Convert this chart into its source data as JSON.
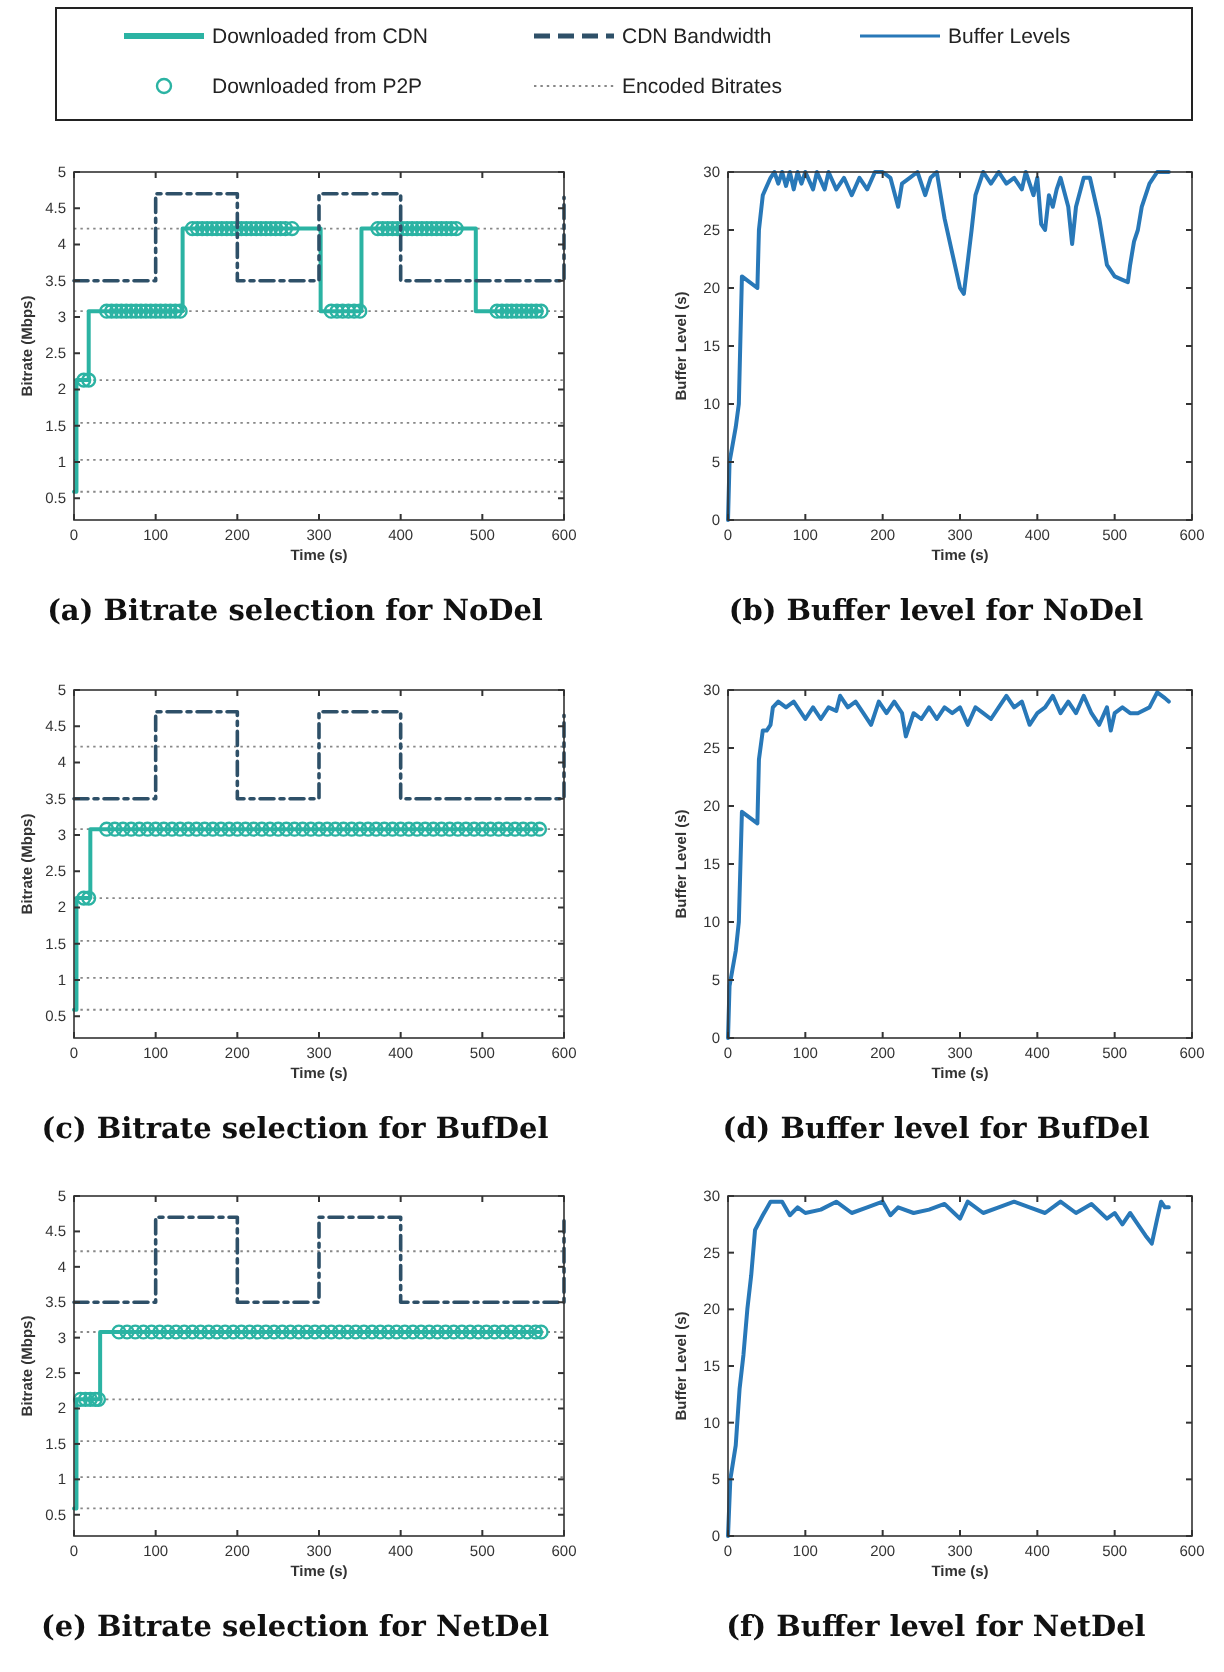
{
  "chart_data": [
    {
      "type": "line",
      "title": "(a) Bitrate selection for NoDel",
      "xlabel": "Time (s)",
      "ylabel": "Bitrate (Mbps)",
      "xlim": [
        0,
        600
      ],
      "xticks": [
        0,
        100,
        200,
        300,
        400,
        500,
        600
      ],
      "ylim": [
        0.2,
        5
      ],
      "yticks": [
        0.5,
        1,
        1.5,
        2,
        2.5,
        3,
        3.5,
        4,
        4.5,
        5
      ],
      "legend": "top",
      "series": [
        {
          "name": "Downloaded from CDN",
          "type": "line",
          "color": "#2bb3a3",
          "line_style": "solid",
          "x": [
            0,
            3,
            3,
            18,
            18,
            133,
            133,
            302,
            302,
            352,
            352,
            492,
            492,
            572
          ],
          "values": [
            0.59,
            0.59,
            2.13,
            2.13,
            3.08,
            3.08,
            4.22,
            4.22,
            3.08,
            3.08,
            4.22,
            4.22,
            3.08,
            3.08
          ]
        },
        {
          "name": "Downloaded from P2P",
          "type": "scatter",
          "marker": "circle",
          "color": "#2bb3a3",
          "x": [
            12,
            18,
            40,
            46,
            52,
            58,
            64,
            70,
            76,
            82,
            88,
            94,
            100,
            106,
            112,
            118,
            124,
            130,
            145,
            151,
            157,
            163,
            169,
            175,
            181,
            187,
            193,
            199,
            205,
            211,
            217,
            223,
            229,
            235,
            241,
            247,
            253,
            259,
            267,
            315,
            322,
            329,
            336,
            343,
            350,
            372,
            378,
            384,
            390,
            396,
            402,
            408,
            414,
            420,
            426,
            432,
            438,
            444,
            450,
            456,
            462,
            468,
            518,
            524,
            530,
            536,
            542,
            548,
            554,
            560,
            566,
            572
          ],
          "values": [
            2.13,
            2.13,
            3.08,
            3.08,
            3.08,
            3.08,
            3.08,
            3.08,
            3.08,
            3.08,
            3.08,
            3.08,
            3.08,
            3.08,
            3.08,
            3.08,
            3.08,
            3.08,
            4.22,
            4.22,
            4.22,
            4.22,
            4.22,
            4.22,
            4.22,
            4.22,
            4.22,
            4.22,
            4.22,
            4.22,
            4.22,
            4.22,
            4.22,
            4.22,
            4.22,
            4.22,
            4.22,
            4.22,
            4.22,
            3.08,
            3.08,
            3.08,
            3.08,
            3.08,
            3.08,
            4.22,
            4.22,
            4.22,
            4.22,
            4.22,
            4.22,
            4.22,
            4.22,
            4.22,
            4.22,
            4.22,
            4.22,
            4.22,
            4.22,
            4.22,
            4.22,
            4.22,
            3.08,
            3.08,
            3.08,
            3.08,
            3.08,
            3.08,
            3.08,
            3.08,
            3.08,
            3.08
          ]
        },
        {
          "name": "CDN Bandwidth",
          "type": "line",
          "color": "#2e5068",
          "line_style": "dashed",
          "x": [
            0,
            100,
            100,
            200,
            200,
            300,
            300,
            400,
            400,
            600,
            600
          ],
          "values": [
            3.5,
            3.5,
            4.7,
            4.7,
            3.5,
            3.5,
            4.7,
            4.7,
            3.5,
            3.5,
            4.65
          ]
        }
      ],
      "ref_lines": [
        {
          "axis": "y",
          "value": 0.59,
          "label": "Encoded Bitrates",
          "color": "#888888",
          "line_style": "dotted"
        },
        {
          "axis": "y",
          "value": 1.03,
          "color": "#888888",
          "line_style": "dotted"
        },
        {
          "axis": "y",
          "value": 1.54,
          "color": "#888888",
          "line_style": "dotted"
        },
        {
          "axis": "y",
          "value": 2.13,
          "color": "#888888",
          "line_style": "dotted"
        },
        {
          "axis": "y",
          "value": 3.08,
          "color": "#888888",
          "line_style": "dotted"
        },
        {
          "axis": "y",
          "value": 4.22,
          "color": "#888888",
          "line_style": "dotted"
        }
      ]
    },
    {
      "type": "line",
      "title": "(b) Buffer level for NoDel",
      "xlabel": "Time (s)",
      "ylabel": "Buffer Level (s)",
      "xlim": [
        0,
        600
      ],
      "xticks": [
        0,
        100,
        200,
        300,
        400,
        500,
        600
      ],
      "ylim": [
        0,
        30
      ],
      "yticks": [
        0,
        5,
        10,
        15,
        20,
        25,
        30
      ],
      "legend": "top",
      "series": [
        {
          "name": "Buffer Levels",
          "type": "line",
          "color": "#2878b8",
          "line_style": "solid",
          "x": [
            0,
            2,
            10,
            14,
            18,
            38,
            40,
            45,
            55,
            60,
            65,
            70,
            75,
            80,
            85,
            90,
            95,
            100,
            110,
            115,
            125,
            130,
            140,
            150,
            160,
            170,
            180,
            190,
            200,
            210,
            220,
            225,
            235,
            245,
            255,
            262,
            270,
            280,
            290,
            300,
            305,
            315,
            320,
            330,
            340,
            350,
            360,
            370,
            380,
            385,
            395,
            400,
            405,
            410,
            415,
            420,
            425,
            430,
            440,
            445,
            450,
            460,
            468,
            480,
            490,
            500,
            510,
            517,
            520,
            525,
            530,
            535,
            545,
            555,
            570
          ],
          "values": [
            0,
            5,
            8,
            10,
            21,
            20,
            25,
            28,
            29.5,
            30,
            29,
            30,
            28.8,
            30,
            28.5,
            30,
            29,
            30,
            28.5,
            30,
            28.5,
            30,
            28.5,
            29.5,
            28,
            29.5,
            28.5,
            30,
            30,
            29.5,
            27,
            29,
            29.5,
            30,
            28,
            29.5,
            30,
            26,
            23,
            20,
            19.5,
            25,
            28,
            30,
            29,
            30,
            29,
            29.5,
            28.5,
            30,
            28,
            29.5,
            25.5,
            25,
            28,
            27,
            28.5,
            29.5,
            27,
            23.8,
            27,
            29.5,
            29.5,
            26,
            22,
            21,
            20.7,
            20.5,
            22,
            24,
            25,
            27,
            29,
            30,
            30
          ]
        }
      ]
    },
    {
      "type": "line",
      "title": "(c) Bitrate selection for BufDel",
      "xlabel": "Time (s)",
      "ylabel": "Bitrate (Mbps)",
      "xlim": [
        0,
        600
      ],
      "xticks": [
        0,
        100,
        200,
        300,
        400,
        500,
        600
      ],
      "ylim": [
        0.2,
        5
      ],
      "yticks": [
        0.5,
        1,
        1.5,
        2,
        2.5,
        3,
        3.5,
        4,
        4.5,
        5
      ],
      "series": [
        {
          "type": "line",
          "color": "#2bb3a3",
          "line_style": "solid",
          "x": [
            0,
            3,
            3,
            20,
            20,
            572
          ],
          "values": [
            0.59,
            0.59,
            2.13,
            2.13,
            3.08,
            3.08
          ]
        },
        {
          "type": "scatter",
          "marker": "circle",
          "color": "#2bb3a3",
          "x": [
            12,
            18,
            40,
            50,
            60,
            70,
            80,
            90,
            100,
            110,
            120,
            130,
            140,
            150,
            160,
            170,
            180,
            190,
            200,
            210,
            220,
            230,
            240,
            250,
            260,
            270,
            280,
            290,
            300,
            310,
            320,
            330,
            340,
            350,
            360,
            370,
            380,
            390,
            400,
            410,
            420,
            430,
            440,
            450,
            460,
            470,
            480,
            490,
            500,
            510,
            520,
            530,
            540,
            550,
            560,
            570
          ],
          "values": [
            2.13,
            2.13,
            3.08,
            3.08,
            3.08,
            3.08,
            3.08,
            3.08,
            3.08,
            3.08,
            3.08,
            3.08,
            3.08,
            3.08,
            3.08,
            3.08,
            3.08,
            3.08,
            3.08,
            3.08,
            3.08,
            3.08,
            3.08,
            3.08,
            3.08,
            3.08,
            3.08,
            3.08,
            3.08,
            3.08,
            3.08,
            3.08,
            3.08,
            3.08,
            3.08,
            3.08,
            3.08,
            3.08,
            3.08,
            3.08,
            3.08,
            3.08,
            3.08,
            3.08,
            3.08,
            3.08,
            3.08,
            3.08,
            3.08,
            3.08,
            3.08,
            3.08,
            3.08,
            3.08,
            3.08,
            3.08
          ]
        },
        {
          "type": "line",
          "color": "#2e5068",
          "line_style": "dashed",
          "x": [
            0,
            100,
            100,
            200,
            200,
            300,
            300,
            400,
            400,
            600,
            600
          ],
          "values": [
            3.5,
            3.5,
            4.7,
            4.7,
            3.5,
            3.5,
            4.7,
            4.7,
            3.5,
            3.5,
            4.65
          ]
        }
      ],
      "ref_lines": [
        {
          "axis": "y",
          "value": 0.59,
          "color": "#888888",
          "line_style": "dotted"
        },
        {
          "axis": "y",
          "value": 1.03,
          "color": "#888888",
          "line_style": "dotted"
        },
        {
          "axis": "y",
          "value": 1.54,
          "color": "#888888",
          "line_style": "dotted"
        },
        {
          "axis": "y",
          "value": 2.13,
          "color": "#888888",
          "line_style": "dotted"
        },
        {
          "axis": "y",
          "value": 3.08,
          "color": "#888888",
          "line_style": "dotted"
        },
        {
          "axis": "y",
          "value": 4.22,
          "color": "#888888",
          "line_style": "dotted"
        }
      ]
    },
    {
      "type": "line",
      "title": "(d) Buffer level for BufDel",
      "xlabel": "Time (s)",
      "ylabel": "Buffer Level (s)",
      "xlim": [
        0,
        600
      ],
      "xticks": [
        0,
        100,
        200,
        300,
        400,
        500,
        600
      ],
      "ylim": [
        0,
        30
      ],
      "yticks": [
        0,
        5,
        10,
        15,
        20,
        25,
        30
      ],
      "series": [
        {
          "type": "line",
          "color": "#2878b8",
          "line_style": "solid",
          "x": [
            0,
            2,
            10,
            14,
            18,
            38,
            40,
            45,
            50,
            55,
            58,
            65,
            75,
            85,
            100,
            110,
            120,
            130,
            140,
            145,
            155,
            165,
            175,
            185,
            195,
            205,
            215,
            225,
            230,
            240,
            250,
            260,
            270,
            280,
            290,
            300,
            310,
            320,
            330,
            340,
            350,
            360,
            370,
            380,
            390,
            400,
            410,
            420,
            430,
            440,
            450,
            460,
            470,
            480,
            490,
            495,
            500,
            510,
            520,
            530,
            545,
            555,
            565,
            570
          ],
          "values": [
            0,
            4.5,
            7.5,
            10,
            19.5,
            18.5,
            24,
            26.5,
            26.5,
            27,
            28.5,
            29,
            28.5,
            29,
            27.5,
            28.5,
            27.5,
            28.5,
            28.2,
            29.5,
            28.5,
            29,
            28,
            27,
            29,
            28,
            29,
            28,
            26,
            28,
            27.5,
            28.5,
            27.5,
            28.5,
            28,
            28.5,
            27,
            28.5,
            28,
            27.5,
            28.5,
            29.5,
            28.5,
            29,
            27,
            28,
            28.5,
            29.5,
            28,
            29,
            28,
            29.5,
            28,
            27,
            28.5,
            26.5,
            28,
            28.5,
            28,
            28,
            28.5,
            29.8,
            29.3,
            29
          ]
        }
      ]
    },
    {
      "type": "line",
      "title": "(e) Bitrate selection for NetDel",
      "xlabel": "Time (s)",
      "ylabel": "Bitrate (Mbps)",
      "xlim": [
        0,
        600
      ],
      "xticks": [
        0,
        100,
        200,
        300,
        400,
        500,
        600
      ],
      "ylim": [
        0.2,
        5
      ],
      "yticks": [
        0.5,
        1,
        1.5,
        2,
        2.5,
        3,
        3.5,
        4,
        4.5,
        5
      ],
      "series": [
        {
          "type": "line",
          "color": "#2bb3a3",
          "line_style": "solid",
          "x": [
            0,
            3,
            3,
            32,
            32,
            572
          ],
          "values": [
            0.59,
            0.59,
            2.13,
            2.13,
            3.08,
            3.08
          ]
        },
        {
          "type": "scatter",
          "marker": "circle",
          "color": "#2bb3a3",
          "x": [
            8,
            14,
            20,
            26,
            30,
            55,
            65,
            75,
            85,
            95,
            105,
            115,
            125,
            135,
            145,
            155,
            165,
            175,
            185,
            195,
            205,
            215,
            225,
            235,
            245,
            255,
            265,
            275,
            285,
            295,
            305,
            315,
            325,
            335,
            345,
            355,
            365,
            375,
            385,
            395,
            405,
            415,
            425,
            435,
            445,
            455,
            465,
            475,
            485,
            495,
            505,
            515,
            525,
            535,
            545,
            555,
            565,
            572
          ],
          "values": [
            2.13,
            2.13,
            2.13,
            2.13,
            2.13,
            3.08,
            3.08,
            3.08,
            3.08,
            3.08,
            3.08,
            3.08,
            3.08,
            3.08,
            3.08,
            3.08,
            3.08,
            3.08,
            3.08,
            3.08,
            3.08,
            3.08,
            3.08,
            3.08,
            3.08,
            3.08,
            3.08,
            3.08,
            3.08,
            3.08,
            3.08,
            3.08,
            3.08,
            3.08,
            3.08,
            3.08,
            3.08,
            3.08,
            3.08,
            3.08,
            3.08,
            3.08,
            3.08,
            3.08,
            3.08,
            3.08,
            3.08,
            3.08,
            3.08,
            3.08,
            3.08,
            3.08,
            3.08,
            3.08,
            3.08,
            3.08,
            3.08,
            3.08
          ]
        },
        {
          "type": "line",
          "color": "#2e5068",
          "line_style": "dashed",
          "x": [
            0,
            100,
            100,
            200,
            200,
            300,
            300,
            400,
            400,
            600,
            600
          ],
          "values": [
            3.5,
            3.5,
            4.7,
            4.7,
            3.5,
            3.5,
            4.7,
            4.7,
            3.5,
            3.5,
            4.65
          ]
        }
      ],
      "ref_lines": [
        {
          "axis": "y",
          "value": 0.59,
          "color": "#888888",
          "line_style": "dotted"
        },
        {
          "axis": "y",
          "value": 1.03,
          "color": "#888888",
          "line_style": "dotted"
        },
        {
          "axis": "y",
          "value": 1.54,
          "color": "#888888",
          "line_style": "dotted"
        },
        {
          "axis": "y",
          "value": 2.13,
          "color": "#888888",
          "line_style": "dotted"
        },
        {
          "axis": "y",
          "value": 3.08,
          "color": "#888888",
          "line_style": "dotted"
        },
        {
          "axis": "y",
          "value": 4.22,
          "color": "#888888",
          "line_style": "dotted"
        }
      ]
    },
    {
      "type": "line",
      "title": "(f) Buffer level for NetDel",
      "xlabel": "Time (s)",
      "ylabel": "Buffer Level (s)",
      "xlim": [
        0,
        600
      ],
      "xticks": [
        0,
        100,
        200,
        300,
        400,
        500,
        600
      ],
      "ylim": [
        0,
        30
      ],
      "yticks": [
        0,
        5,
        10,
        15,
        20,
        25,
        30
      ],
      "series": [
        {
          "type": "line",
          "color": "#2878b8",
          "line_style": "solid",
          "x": [
            0,
            3,
            10,
            15,
            20,
            25,
            30,
            35,
            45,
            55,
            70,
            80,
            90,
            100,
            120,
            140,
            160,
            180,
            200,
            210,
            220,
            240,
            260,
            280,
            300,
            310,
            330,
            350,
            370,
            390,
            410,
            430,
            450,
            470,
            490,
            500,
            510,
            520,
            530,
            540,
            548,
            555,
            560,
            565,
            570
          ],
          "values": [
            0,
            5,
            8,
            13,
            16,
            20,
            23,
            27,
            28.3,
            29.5,
            29.5,
            28.3,
            29,
            28.5,
            28.8,
            29.5,
            28.5,
            29,
            29.5,
            28.3,
            29,
            28.5,
            28.8,
            29.3,
            28,
            29.5,
            28.5,
            29,
            29.5,
            29,
            28.5,
            29.5,
            28.5,
            29.3,
            28,
            28.5,
            27.5,
            28.5,
            27.5,
            26.5,
            25.8,
            28,
            29.5,
            29,
            29
          ]
        }
      ]
    }
  ]
}
